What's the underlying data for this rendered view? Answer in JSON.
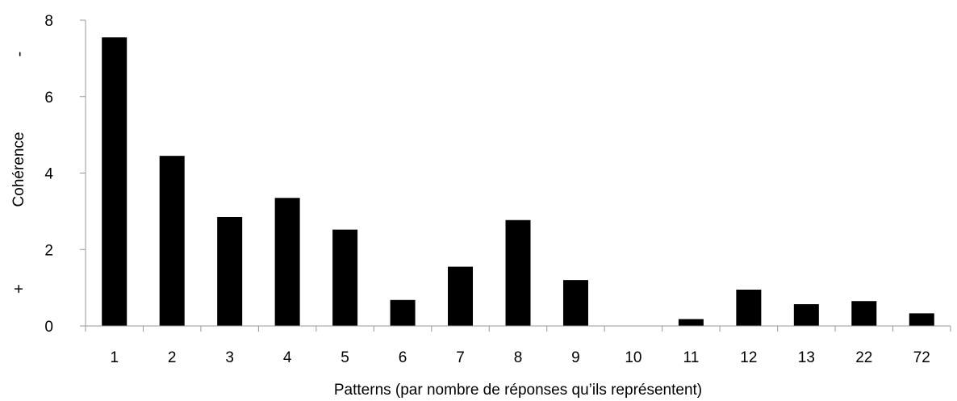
{
  "chart_data": {
    "type": "bar",
    "categories": [
      "1",
      "2",
      "3",
      "4",
      "5",
      "6",
      "7",
      "8",
      "9",
      "10",
      "11",
      "12",
      "13",
      "22",
      "72"
    ],
    "values": [
      7.55,
      4.45,
      2.85,
      3.35,
      2.52,
      0.68,
      1.55,
      2.77,
      1.2,
      0,
      0.18,
      0.95,
      0.57,
      0.65,
      0.33
    ],
    "xlabel": "Patterns (par nombre de réponses qu’ils représentent)",
    "ylabel": "Cohérence",
    "ylim": [
      0,
      8
    ],
    "yticks": [
      "0",
      "2",
      "4",
      "6",
      "8"
    ],
    "y_annotation_top": "-",
    "y_annotation_bottom": "+",
    "grid": false,
    "legend": "none",
    "bar_color": "#000000",
    "axis_color": "#999999"
  }
}
